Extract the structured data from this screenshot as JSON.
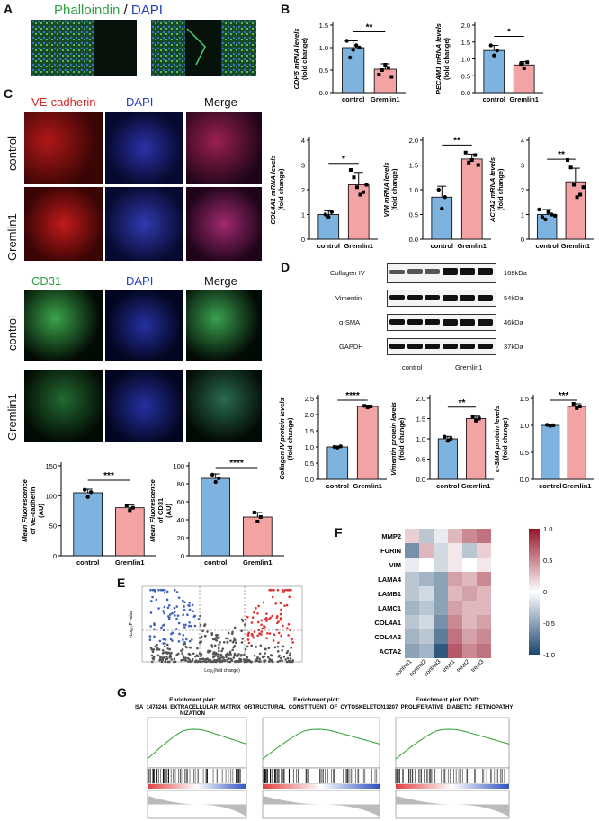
{
  "panels": {
    "A": "A",
    "B": "B",
    "C": "C",
    "D": "D",
    "E": "E",
    "F": "F",
    "G": "G"
  },
  "panelA": {
    "title_green": "Phalloindin",
    "title_sep": " / ",
    "title_blue": "DAPI"
  },
  "panelC": {
    "header1": [
      "VE-cadherin",
      "DAPI",
      "Merge"
    ],
    "header2": [
      "CD31",
      "DAPI",
      "Merge"
    ],
    "rows": [
      "control",
      "Gremlin1"
    ]
  },
  "colors": {
    "control": "#7fb3df",
    "gremlin": "#f3a3a3",
    "green": "#2ea043",
    "red": "#d62728",
    "blue": "#1f3fbf"
  },
  "bar_charts": [
    {
      "id": "cdh5",
      "ylabel": "CDH5 mRNA levels\n(fold change)",
      "categories": [
        "control",
        "Gremlin1"
      ],
      "values": [
        1.0,
        0.52
      ],
      "err": [
        0.15,
        0.12
      ],
      "ylim": [
        0,
        1.5
      ],
      "yticks": [
        "0.0",
        "0.5",
        "1.0",
        "1.5"
      ],
      "sig": "**",
      "points": [
        [
          1.15,
          0.78,
          0.95,
          1.05,
          1.0
        ],
        [
          0.4,
          0.5,
          0.62,
          0.55,
          0.35
        ]
      ]
    },
    {
      "id": "pecam1",
      "ylabel": "PECAM1 mRNA levels\n(fold change)",
      "categories": [
        "control",
        "Gremlin1"
      ],
      "values": [
        1.25,
        0.82
      ],
      "err": [
        0.15,
        0.1
      ],
      "ylim": [
        0,
        2.0
      ],
      "yticks": [
        "0.0",
        "0.5",
        "1.0",
        "1.5",
        "2.0"
      ],
      "sig": "*",
      "points": [
        [
          1.4,
          1.1,
          1.25
        ],
        [
          0.85,
          0.72,
          0.9
        ]
      ]
    },
    {
      "id": "col4a1",
      "ylabel": "COL4A1 mRNA levels\n(fold change)",
      "categories": [
        "control",
        "Gremlin1"
      ],
      "values": [
        1.0,
        2.2
      ],
      "err": [
        0.15,
        0.5
      ],
      "ylim": [
        0,
        4
      ],
      "yticks": [
        "0",
        "1",
        "2",
        "3",
        "4"
      ],
      "sig": "*",
      "points": [
        [
          1.0,
          0.9,
          1.1
        ],
        [
          2.8,
          2.5,
          2.1,
          1.8,
          1.9,
          2.2
        ]
      ]
    },
    {
      "id": "vim",
      "ylabel": "VIM mRNA levels\n(fold change)",
      "categories": [
        "control",
        "Gremlin1"
      ],
      "values": [
        0.85,
        1.62
      ],
      "err": [
        0.22,
        0.1
      ],
      "ylim": [
        0,
        2.0
      ],
      "yticks": [
        "0.0",
        "0.5",
        "1.0",
        "1.5",
        "2.0"
      ],
      "sig": "**",
      "points": [
        [
          1.0,
          0.62,
          0.85
        ],
        [
          1.75,
          1.55,
          1.6,
          1.7,
          1.5
        ]
      ]
    },
    {
      "id": "acta2",
      "ylabel": "ACTA2 mRNA levels\n(fold change)",
      "categories": [
        "control",
        "Gremlin1"
      ],
      "values": [
        1.0,
        2.32
      ],
      "err": [
        0.2,
        0.55
      ],
      "ylim": [
        0,
        4
      ],
      "yticks": [
        "0",
        "1",
        "2",
        "3",
        "4"
      ],
      "sig": "**",
      "points": [
        [
          1.2,
          0.9,
          0.8,
          1.1,
          1.0,
          0.95
        ],
        [
          3.2,
          2.9,
          2.2,
          1.7,
          1.8,
          2.1
        ]
      ]
    },
    {
      "id": "colivp",
      "ylabel": "Collagen IV protein levels\n(fold change)",
      "categories": [
        "control",
        "Gremlin1"
      ],
      "values": [
        1.0,
        2.25
      ],
      "err": [
        0.03,
        0.04
      ],
      "ylim": [
        0,
        2.5
      ],
      "yticks": [
        "0.0",
        "0.5",
        "1.0",
        "1.5",
        "2.0",
        "2.5"
      ],
      "sig": "****",
      "points": [
        [
          1.0,
          0.98,
          1.02
        ],
        [
          2.27,
          2.22,
          2.25
        ]
      ]
    },
    {
      "id": "vimp",
      "ylabel": "Vimentin protein levels\n(fold change)",
      "categories": [
        "control",
        "Gremlin1"
      ],
      "values": [
        1.0,
        1.5
      ],
      "err": [
        0.06,
        0.06
      ],
      "ylim": [
        0,
        2.0
      ],
      "yticks": [
        "0.0",
        "0.5",
        "1.0",
        "1.5",
        "2.0"
      ],
      "sig": "**",
      "points": [
        [
          1.05,
          0.95,
          1.0
        ],
        [
          1.55,
          1.45,
          1.5
        ]
      ]
    },
    {
      "id": "smap",
      "ylabel": "α-SMA protein levels\n(fold change)",
      "categories": [
        "control",
        "Gremlin1"
      ],
      "values": [
        1.0,
        1.35
      ],
      "err": [
        0.02,
        0.05
      ],
      "ylim": [
        0,
        1.5
      ],
      "yticks": [
        "0.0",
        "0.5",
        "1.0",
        "1.5"
      ],
      "sig": "***",
      "points": [
        [
          1.01,
          0.99,
          1.0
        ],
        [
          1.4,
          1.32,
          1.35
        ]
      ]
    },
    {
      "id": "vecad",
      "ylabel": "Mean Fluorescence\nof VE-cadherin\n(AU)",
      "categories": [
        "control",
        "Gremlin1"
      ],
      "values": [
        105,
        80
      ],
      "err": [
        6,
        5
      ],
      "ylim": [
        0,
        150
      ],
      "yticks": [
        "0",
        "50",
        "100",
        "150"
      ],
      "sig": "***",
      "points": [
        [
          110,
          98,
          106
        ],
        [
          84,
          76,
          80
        ]
      ]
    },
    {
      "id": "cd31",
      "ylabel": "Mean Fluorescence\nof CD31\n(AU)",
      "categories": [
        "control",
        "Gremlin1"
      ],
      "values": [
        86,
        43
      ],
      "err": [
        5,
        5
      ],
      "ylim": [
        0,
        100
      ],
      "yticks": [
        "0",
        "20",
        "40",
        "60",
        "80",
        "100"
      ],
      "sig": "****",
      "points": [
        [
          90,
          82,
          86
        ],
        [
          48,
          38,
          43
        ]
      ]
    }
  ],
  "blot": {
    "rows": [
      {
        "name": "Collagen IV",
        "kda": "168kDa"
      },
      {
        "name": "Vimentin",
        "kda": "54kDa"
      },
      {
        "name": "α-SMA",
        "kda": "46kDa"
      },
      {
        "name": "GAPDH",
        "kda": "37kDa"
      }
    ],
    "groups": [
      "control",
      "Gremlin1"
    ]
  },
  "heatmap": {
    "genes": [
      "MMP2",
      "FURIN",
      "VIM",
      "LAMA4",
      "LAMB1",
      "LAMC1",
      "COL4A1",
      "COL4A2",
      "ACTA2"
    ],
    "samples": [
      "control1",
      "control2",
      "control3",
      "treat1",
      "treat2",
      "treat3"
    ],
    "values": [
      [
        0.2,
        -0.3,
        -0.1,
        0.3,
        0.5,
        0.6
      ],
      [
        -0.6,
        0.3,
        -0.2,
        0.1,
        -0.3,
        0.2
      ],
      [
        -0.1,
        0.0,
        -0.2,
        0.1,
        0.0,
        0.1
      ],
      [
        -0.3,
        -0.4,
        -0.5,
        0.4,
        0.3,
        0.5
      ],
      [
        -0.3,
        -0.2,
        -0.5,
        0.3,
        0.4,
        0.3
      ],
      [
        -0.4,
        -0.3,
        -0.5,
        0.4,
        0.3,
        0.3
      ],
      [
        -0.3,
        -0.2,
        -0.6,
        0.5,
        0.3,
        0.4
      ],
      [
        -0.4,
        -0.3,
        -0.7,
        0.6,
        0.4,
        0.5
      ],
      [
        -0.5,
        -0.4,
        -0.9,
        0.7,
        0.5,
        0.6
      ]
    ],
    "colorbar": [
      "1.0",
      "0.5",
      "0",
      "-0.5",
      "-1.0"
    ]
  },
  "volcano": {
    "ylabel": "-Log₁₀P value",
    "xlabel": "Log₂(fold change)"
  },
  "gsea": [
    {
      "header": "Enrichment plot:",
      "title": "R_HSA_1474244_EXTRACELLULAR_MATRIX_ORGA\nNIZATION"
    },
    {
      "header": "Enrichment plot:",
      "title": "STRUCTURAL_CONSTITUENT_OF_CYTOSKELETON"
    },
    {
      "header": "Enrichment plot: DOID:",
      "title": "13207_PROLIFERATIVE_DIABETIC_RETINOPATHY"
    }
  ]
}
